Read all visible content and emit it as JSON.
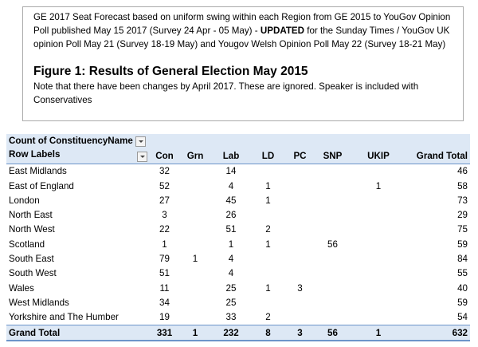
{
  "note_box": {
    "text_before": "GE 2017 Seat Forecast based on uniform swing within each Region from GE 2015 to YouGov Opinion Poll published May 15 2017 (Survey 24 Apr - 05 May) - ",
    "emphasis": "UPDATED",
    "text_after": " for the Sunday Times / YouGov UK opinion Poll May 21 (Survey 18-19 May) and Yougov Welsh Opinion Poll May 22 (Survey 18-21 May)",
    "figure_title": "Figure 1: Results of General Election May 2015",
    "figure_note": "Note that there have been changes by April 2017. These  are ignored. Speaker is included with Conservatives"
  },
  "pivot": {
    "value_field": "Count of ConstituencyName",
    "row_header": "Row Labels",
    "columns": [
      "Con",
      "Grn",
      "Lab",
      "LD",
      "PC",
      "SNP",
      "UKIP",
      "Grand Total"
    ],
    "rows": [
      {
        "label": "East Midlands",
        "values": [
          32,
          null,
          14,
          null,
          null,
          null,
          null,
          46
        ]
      },
      {
        "label": "East of England",
        "values": [
          52,
          null,
          4,
          1,
          null,
          null,
          1,
          58
        ]
      },
      {
        "label": "London",
        "values": [
          27,
          null,
          45,
          1,
          null,
          null,
          null,
          73
        ]
      },
      {
        "label": "North East",
        "values": [
          3,
          null,
          26,
          null,
          null,
          null,
          null,
          29
        ]
      },
      {
        "label": "North West",
        "values": [
          22,
          null,
          51,
          2,
          null,
          null,
          null,
          75
        ]
      },
      {
        "label": "Scotland",
        "values": [
          1,
          null,
          1,
          1,
          null,
          56,
          null,
          59
        ]
      },
      {
        "label": "South East",
        "values": [
          79,
          1,
          4,
          null,
          null,
          null,
          null,
          84
        ]
      },
      {
        "label": "South West",
        "values": [
          51,
          null,
          4,
          null,
          null,
          null,
          null,
          55
        ]
      },
      {
        "label": "Wales",
        "values": [
          11,
          null,
          25,
          1,
          3,
          null,
          null,
          40
        ]
      },
      {
        "label": "West Midlands",
        "values": [
          34,
          null,
          25,
          null,
          null,
          null,
          null,
          59
        ]
      },
      {
        "label": "Yorkshire and The Humber",
        "values": [
          19,
          null,
          33,
          2,
          null,
          null,
          null,
          54
        ]
      }
    ],
    "grand_total": {
      "label": "Grand Total",
      "values": [
        331,
        1,
        232,
        8,
        3,
        56,
        1,
        632
      ]
    }
  }
}
